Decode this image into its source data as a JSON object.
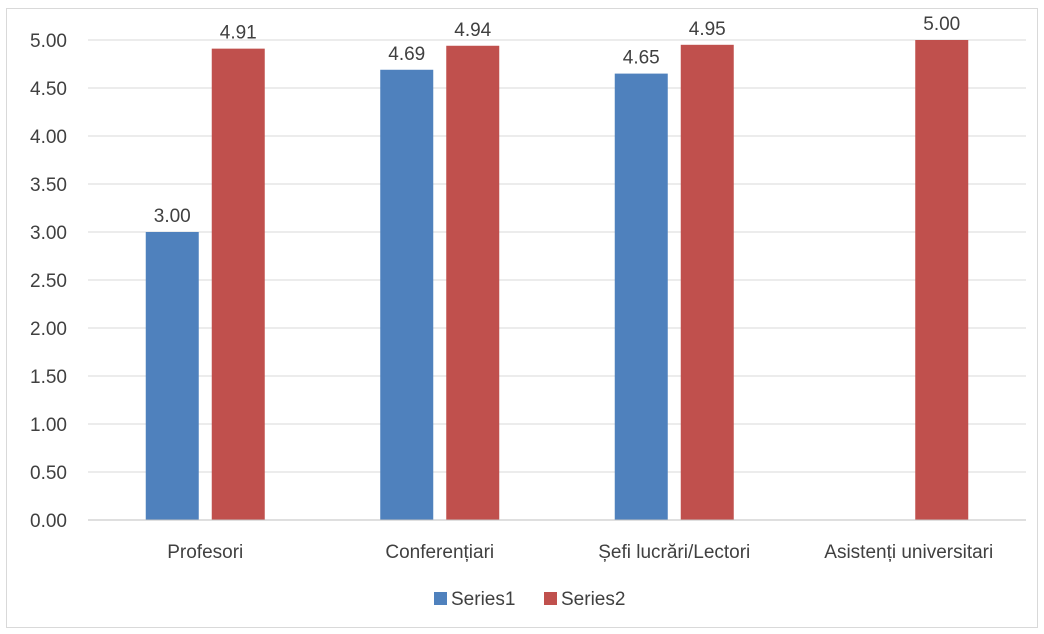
{
  "chart_data": {
    "type": "bar",
    "categories": [
      "Profesori",
      "Conferențiari",
      "Șefi lucrări/Lectori",
      "Asistenți universitari"
    ],
    "series": [
      {
        "name": "Series1",
        "color": "#4f81bd",
        "values": [
          3.0,
          4.69,
          4.65,
          null
        ]
      },
      {
        "name": "Series2",
        "color": "#c0504d",
        "values": [
          4.91,
          4.94,
          4.95,
          5.0
        ]
      }
    ],
    "data_labels": {
      "Series1": [
        "3.00",
        "4.69",
        "4.65",
        null
      ],
      "Series2": [
        "4.91",
        "4.94",
        "4.95",
        "5.00"
      ]
    },
    "yticks": [
      "0.00",
      "0.50",
      "1.00",
      "1.50",
      "2.00",
      "2.50",
      "3.00",
      "3.50",
      "4.00",
      "4.50",
      "5.00"
    ],
    "ylim": [
      0,
      5
    ],
    "title": "",
    "xlabel": "",
    "ylabel": "",
    "grid": true,
    "legend_position": "bottom",
    "gridline_color": "#d9d9d9",
    "axis_color": "#bfbfbf",
    "text_color": "#404040"
  }
}
